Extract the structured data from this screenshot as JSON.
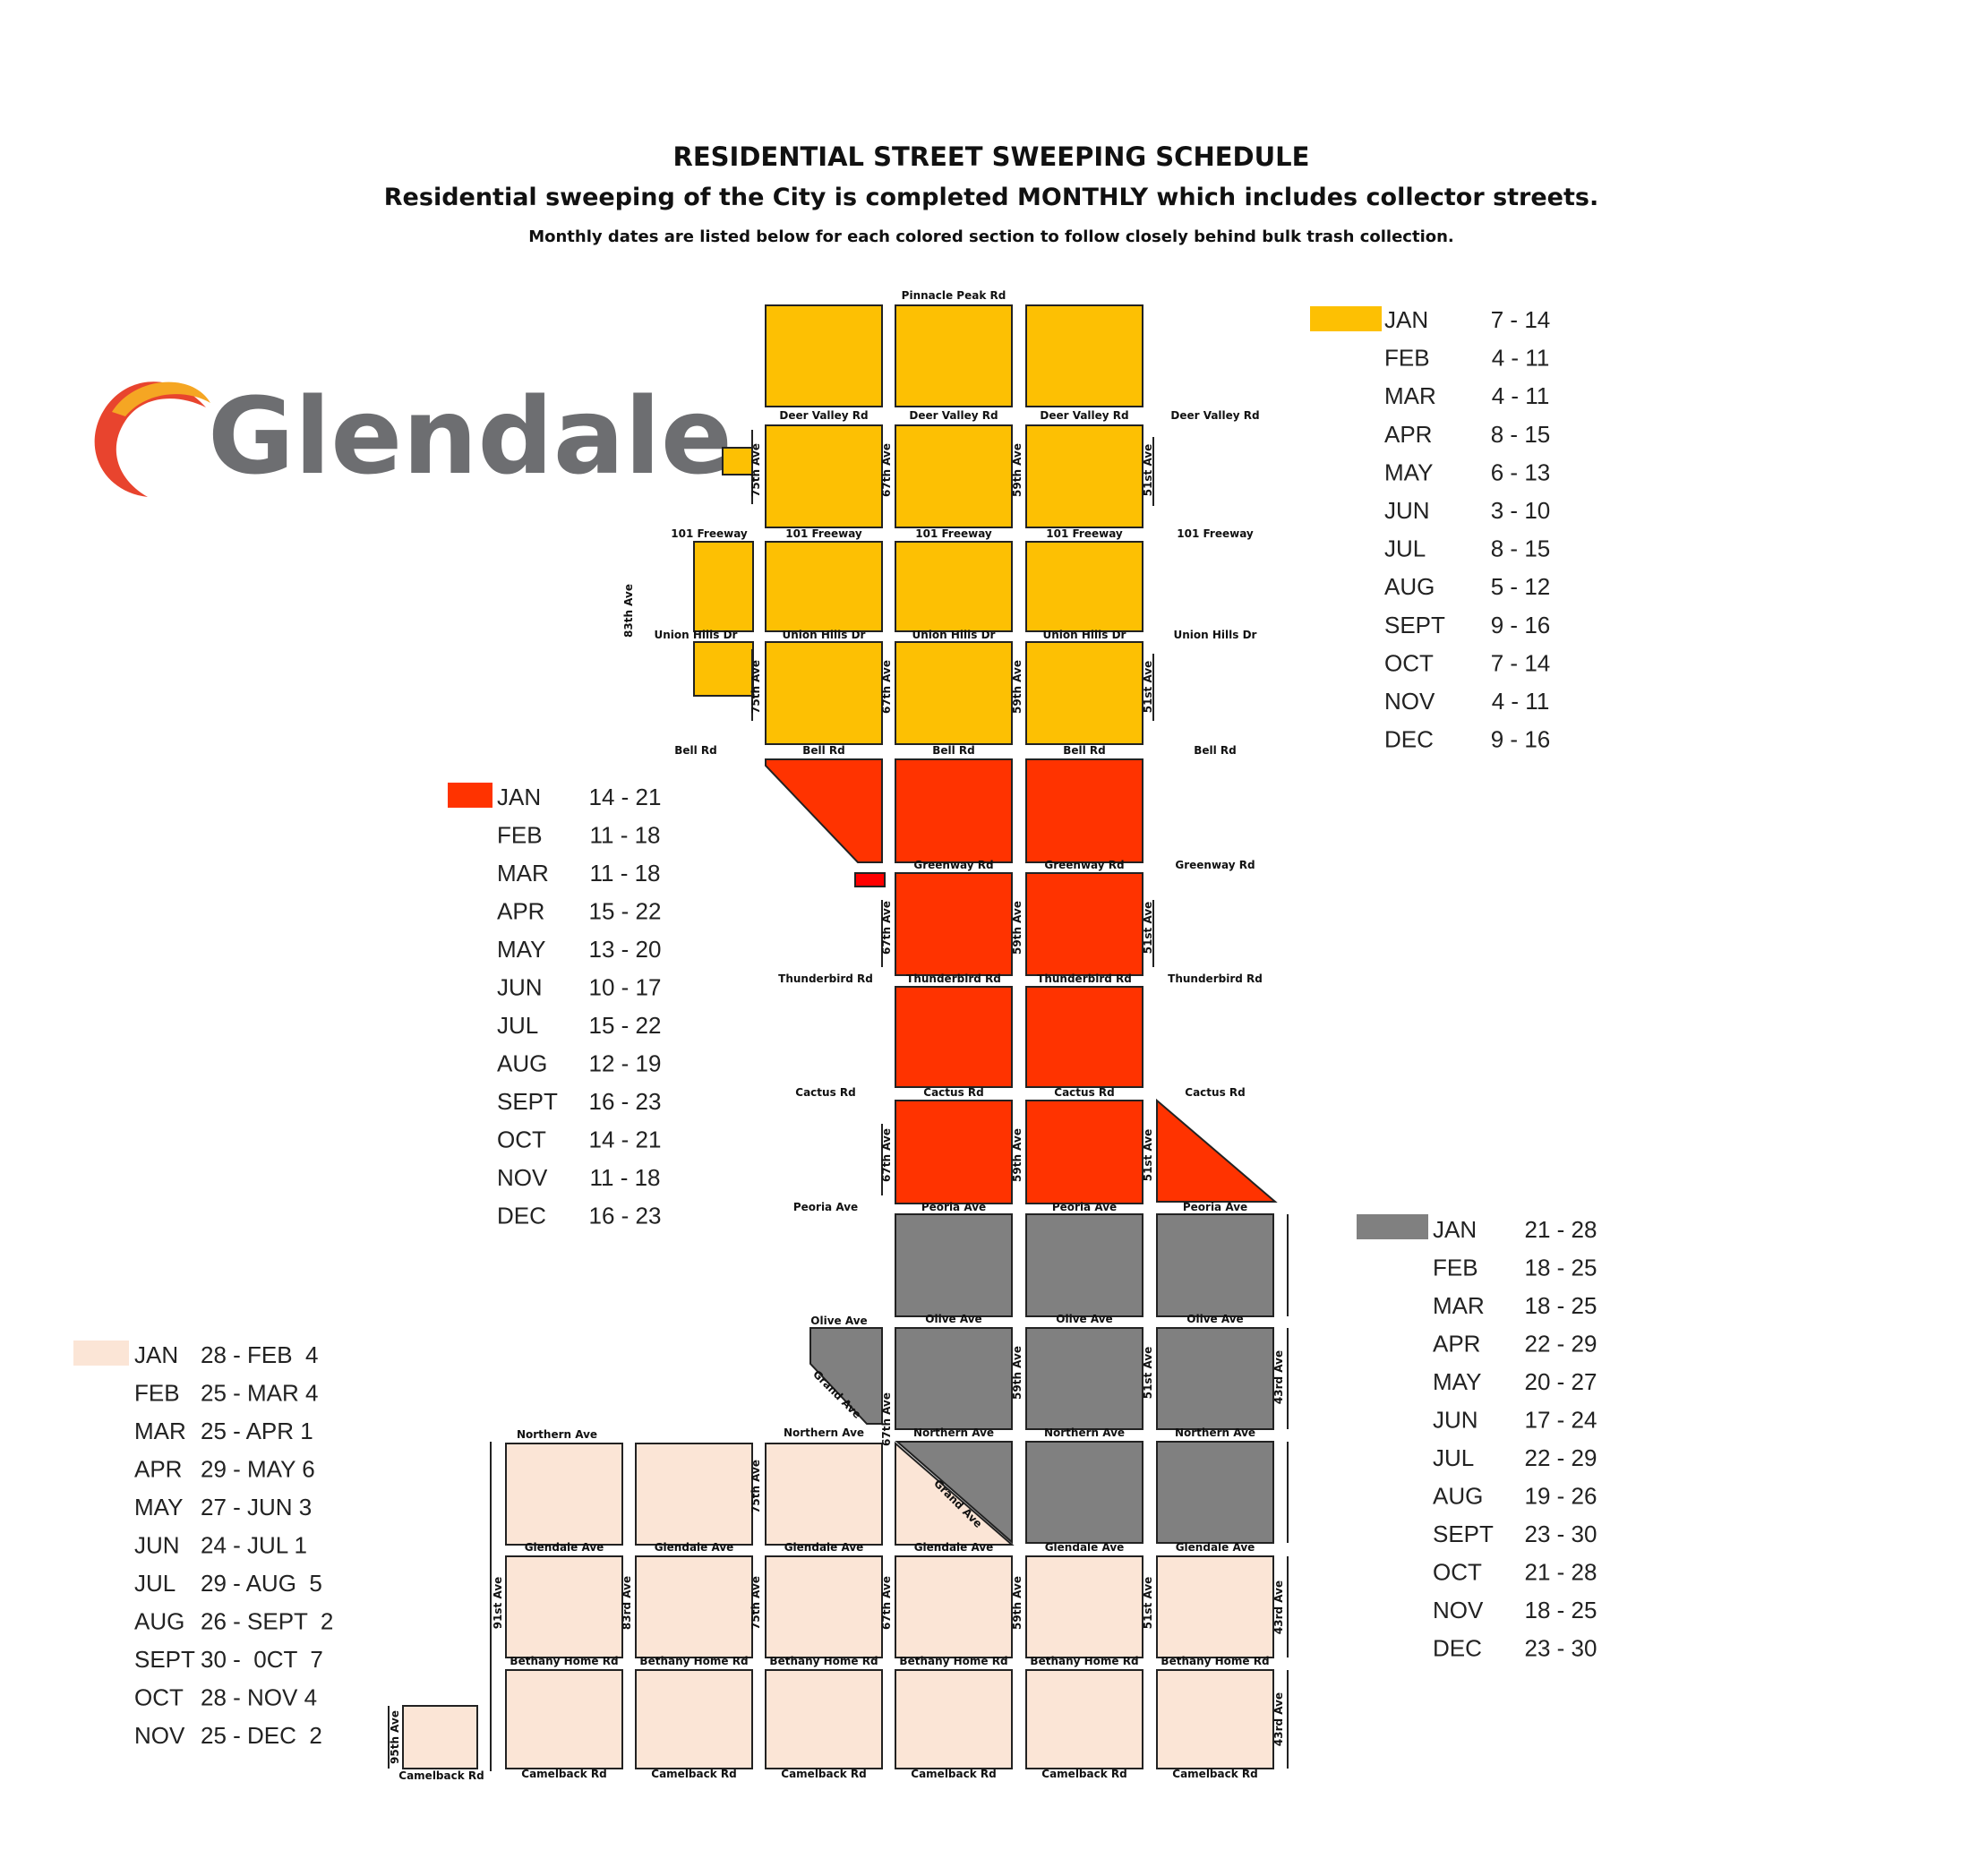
{
  "header": {
    "title": "RESIDENTIAL STREET SWEEPING SCHEDULE",
    "subtitle": "Residential sweeping of the City is completed MONTHLY which includes collector streets.",
    "note": "Monthly dates are listed below for each colored section to follow closely behind bulk trash collection."
  },
  "logo": {
    "text": "Glendale",
    "icon": "glendale-swoosh-logo"
  },
  "colors": {
    "yellow": "#FDC003",
    "red": "#FF3300",
    "gray": "#808080",
    "peach": "#FBE5D6"
  },
  "roads": {
    "pinnacle_peak": "Pinnacle Peak Rd",
    "deer_valley": "Deer Valley Rd",
    "freeway_101": "101 Freeway",
    "union_hills": "Union Hills Dr",
    "bell": "Bell Rd",
    "greenway": "Greenway Rd",
    "thunderbird": "Thunderbird Rd",
    "cactus": "Cactus Rd",
    "peoria": "Peoria Ave",
    "olive": "Olive Ave",
    "northern": "Northern Ave",
    "glendale": "Glendale Ave",
    "bethany_home": "Bethany Home Rd",
    "camelback": "Camelback Rd",
    "grand": "Grand Ave",
    "ave95": "95th Ave",
    "ave91": "91st Ave",
    "ave83": "83rd Ave",
    "ave83th": "83th Ave",
    "ave75": "75th Ave",
    "ave67": "67th Ave",
    "ave59": "59th Ave",
    "ave51": "51st Ave",
    "ave43": "43rd Ave"
  },
  "schedules": {
    "yellow": [
      {
        "month": "JAN",
        "dates": "7 - 14"
      },
      {
        "month": "FEB",
        "dates": "4 - 11"
      },
      {
        "month": "MAR",
        "dates": "4 - 11"
      },
      {
        "month": "APR",
        "dates": "8 - 15"
      },
      {
        "month": "MAY",
        "dates": "6 - 13"
      },
      {
        "month": "JUN",
        "dates": "3 - 10"
      },
      {
        "month": "JUL",
        "dates": "8 - 15"
      },
      {
        "month": "AUG",
        "dates": "5 - 12"
      },
      {
        "month": "SEPT",
        "dates": "9 - 16"
      },
      {
        "month": "OCT",
        "dates": "7 - 14"
      },
      {
        "month": "NOV",
        "dates": "4 - 11"
      },
      {
        "month": "DEC",
        "dates": "9 - 16"
      }
    ],
    "red": [
      {
        "month": "JAN",
        "dates": "14 - 21"
      },
      {
        "month": "FEB",
        "dates": "11 - 18"
      },
      {
        "month": "MAR",
        "dates": "11 - 18"
      },
      {
        "month": "APR",
        "dates": "15 - 22"
      },
      {
        "month": "MAY",
        "dates": "13 - 20"
      },
      {
        "month": "JUN",
        "dates": "10 - 17"
      },
      {
        "month": "JUL",
        "dates": "15 - 22"
      },
      {
        "month": "AUG",
        "dates": "12 - 19"
      },
      {
        "month": "SEPT",
        "dates": "16 - 23"
      },
      {
        "month": "OCT",
        "dates": "14 - 21"
      },
      {
        "month": "NOV",
        "dates": "11 - 18"
      },
      {
        "month": "DEC",
        "dates": "16 - 23"
      }
    ],
    "gray": [
      {
        "month": "JAN",
        "dates": "21 - 28"
      },
      {
        "month": "FEB",
        "dates": "18 - 25"
      },
      {
        "month": "MAR",
        "dates": "18 - 25"
      },
      {
        "month": "APR",
        "dates": "22 - 29"
      },
      {
        "month": "MAY",
        "dates": "20 - 27"
      },
      {
        "month": "JUN",
        "dates": "17 - 24"
      },
      {
        "month": "JUL",
        "dates": "22 - 29"
      },
      {
        "month": "AUG",
        "dates": "19 - 26"
      },
      {
        "month": "SEPT",
        "dates": "23 - 30"
      },
      {
        "month": "OCT",
        "dates": "21 - 28"
      },
      {
        "month": "NOV",
        "dates": "18 - 25"
      },
      {
        "month": "DEC",
        "dates": "23 - 30"
      }
    ],
    "peach": [
      {
        "month": "JAN",
        "dates": "28 - FEB  4"
      },
      {
        "month": "FEB",
        "dates": "25 - MAR 4"
      },
      {
        "month": "MAR",
        "dates": "25 - APR 1"
      },
      {
        "month": "APR",
        "dates": "29 - MAY 6"
      },
      {
        "month": "MAY",
        "dates": "27 - JUN 3"
      },
      {
        "month": "JUN",
        "dates": "24 - JUL 1"
      },
      {
        "month": "JUL",
        "dates": "29 - AUG  5"
      },
      {
        "month": "AUG",
        "dates": "26 - SEPT  2"
      },
      {
        "month": "SEPT",
        "dates": "30 -  0CT  7"
      },
      {
        "month": "OCT",
        "dates": "28 - NOV 4"
      },
      {
        "month": "NOV",
        "dates": "25 - DEC  2"
      }
    ]
  }
}
